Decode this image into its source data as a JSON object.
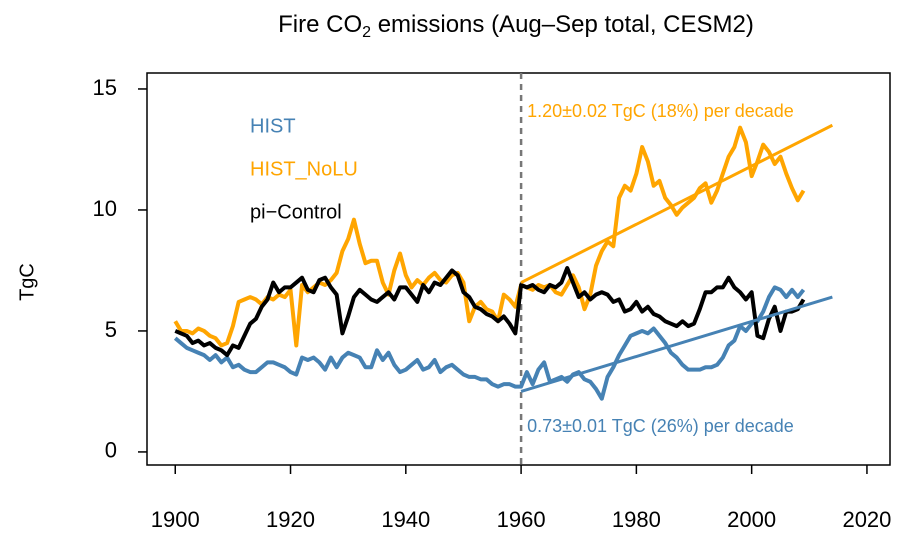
{
  "chart_data": {
    "type": "line",
    "title": {
      "text_before": "Fire CO",
      "subscript": "2",
      "text_after": " emissions (Aug–Sep total, CESM2)"
    },
    "y_label": "TgC",
    "x": [
      1900,
      1901,
      1902,
      1903,
      1904,
      1905,
      1906,
      1907,
      1908,
      1909,
      1910,
      1911,
      1912,
      1913,
      1914,
      1915,
      1916,
      1917,
      1918,
      1919,
      1920,
      1921,
      1922,
      1923,
      1924,
      1925,
      1926,
      1927,
      1928,
      1929,
      1930,
      1931,
      1932,
      1933,
      1934,
      1935,
      1936,
      1937,
      1938,
      1939,
      1940,
      1941,
      1942,
      1943,
      1944,
      1945,
      1946,
      1947,
      1948,
      1949,
      1950,
      1951,
      1952,
      1953,
      1954,
      1955,
      1956,
      1957,
      1958,
      1959,
      1960,
      1961,
      1962,
      1963,
      1964,
      1965,
      1966,
      1967,
      1968,
      1969,
      1970,
      1971,
      1972,
      1973,
      1974,
      1975,
      1976,
      1977,
      1978,
      1979,
      1980,
      1981,
      1982,
      1983,
      1984,
      1985,
      1986,
      1987,
      1988,
      1989,
      1990,
      1991,
      1992,
      1993,
      1994,
      1995,
      1996,
      1997,
      1998,
      1999,
      2000,
      2001,
      2002,
      2003,
      2004,
      2005,
      2006,
      2007,
      2008,
      2009
    ],
    "series": [
      {
        "name": "HIST",
        "color": "#4682b4",
        "values": [
          4.7,
          4.5,
          4.3,
          4.2,
          4.1,
          4.0,
          3.8,
          4.0,
          3.7,
          3.9,
          3.5,
          3.6,
          3.4,
          3.3,
          3.3,
          3.5,
          3.7,
          3.7,
          3.6,
          3.5,
          3.3,
          3.2,
          3.9,
          3.8,
          3.9,
          3.7,
          3.4,
          3.9,
          3.5,
          3.9,
          4.1,
          4.0,
          3.9,
          3.5,
          3.5,
          4.2,
          3.8,
          4.1,
          3.6,
          3.3,
          3.4,
          3.6,
          3.8,
          3.4,
          3.5,
          3.8,
          3.3,
          3.5,
          3.6,
          3.4,
          3.2,
          3.1,
          3.1,
          3.0,
          3.0,
          2.8,
          2.7,
          2.8,
          2.8,
          2.7,
          2.7,
          3.3,
          2.8,
          3.4,
          3.7,
          2.9,
          3.0,
          3.1,
          2.9,
          3.2,
          3.3,
          3.0,
          2.9,
          2.6,
          2.2,
          3.1,
          3.5,
          4.0,
          4.4,
          4.8,
          4.9,
          5.0,
          4.9,
          5.1,
          4.8,
          4.5,
          4.1,
          3.9,
          3.6,
          3.4,
          3.4,
          3.4,
          3.5,
          3.5,
          3.6,
          3.9,
          4.4,
          4.6,
          5.2,
          5.0,
          5.3,
          5.4,
          5.8,
          6.4,
          6.8,
          6.7,
          6.4,
          6.7,
          6.4,
          6.7
        ]
      },
      {
        "name": "HIST_NoLU",
        "color": "#ffa500",
        "values": [
          5.4,
          5.0,
          5.0,
          4.9,
          5.1,
          5.0,
          4.8,
          4.7,
          4.4,
          4.5,
          5.2,
          6.2,
          6.3,
          6.4,
          6.3,
          6.1,
          6.4,
          6.3,
          6.5,
          6.4,
          6.7,
          4.4,
          6.9,
          6.6,
          6.8,
          7.0,
          6.9,
          7.1,
          7.4,
          8.3,
          8.8,
          9.6,
          8.6,
          7.8,
          7.9,
          7.9,
          7.0,
          6.5,
          7.5,
          8.2,
          7.3,
          6.8,
          7.1,
          6.9,
          7.2,
          7.4,
          7.1,
          7.0,
          7.3,
          7.4,
          7.0,
          5.4,
          6.0,
          6.2,
          5.9,
          5.8,
          5.4,
          6.5,
          6.3,
          6.0,
          6.9,
          6.8,
          6.7,
          6.9,
          6.8,
          6.9,
          6.6,
          6.5,
          6.9,
          7.3,
          6.8,
          5.9,
          6.5,
          7.7,
          8.3,
          8.7,
          8.5,
          10.5,
          11.0,
          10.8,
          11.5,
          12.6,
          12.0,
          11.0,
          11.2,
          10.5,
          10.2,
          9.8,
          10.1,
          10.3,
          10.5,
          10.9,
          11.1,
          10.3,
          10.8,
          11.5,
          12.2,
          12.6,
          13.4,
          12.8,
          11.4,
          12.0,
          12.7,
          12.4,
          11.9,
          12.2,
          11.5,
          10.9,
          10.4,
          10.8
        ]
      },
      {
        "name": "pi−Control",
        "color": "#000000",
        "values": [
          5.0,
          4.9,
          4.8,
          4.5,
          4.6,
          4.4,
          4.5,
          4.3,
          4.2,
          4.0,
          4.4,
          4.3,
          4.8,
          5.3,
          5.5,
          6.0,
          6.3,
          7.0,
          6.6,
          6.8,
          6.8,
          7.0,
          7.2,
          6.7,
          6.6,
          7.1,
          7.2,
          6.8,
          6.5,
          4.9,
          5.6,
          6.4,
          6.7,
          6.5,
          6.3,
          6.2,
          6.4,
          6.6,
          6.3,
          6.8,
          6.8,
          6.5,
          6.2,
          6.9,
          6.6,
          7.0,
          6.9,
          7.2,
          7.5,
          7.3,
          6.6,
          6.4,
          6.0,
          5.9,
          5.7,
          5.6,
          5.4,
          5.6,
          5.3,
          4.9,
          6.9,
          6.8,
          6.9,
          6.7,
          6.6,
          6.9,
          6.8,
          7.0,
          7.6,
          7.0,
          6.4,
          6.6,
          6.3,
          6.5,
          6.6,
          6.5,
          6.2,
          6.3,
          5.8,
          5.9,
          6.2,
          5.8,
          6.0,
          5.7,
          5.6,
          5.4,
          5.3,
          5.2,
          5.4,
          5.2,
          5.3,
          5.9,
          6.6,
          6.6,
          6.8,
          6.8,
          7.2,
          6.8,
          6.6,
          6.3,
          6.6,
          4.8,
          4.7,
          5.5,
          6.0,
          5.0,
          5.8,
          5.8,
          5.9,
          6.3
        ]
      }
    ],
    "trends": [
      {
        "x": [
          1960,
          2014
        ],
        "values": [
          7.0,
          13.5
        ],
        "color": "#ffa500",
        "label": "1.20±0.02 TgC (18%) per decade"
      },
      {
        "x": [
          1960,
          2014
        ],
        "values": [
          2.5,
          6.4
        ],
        "color": "#4682b4",
        "label": "0.73±0.01 TgC (26%) per decade"
      }
    ],
    "vline": 1960,
    "xlim": [
      1895.1,
      2024
    ],
    "ylim": [
      -0.54,
      15.66
    ],
    "xticks": [
      1900,
      1920,
      1940,
      1960,
      1980,
      2000,
      2020
    ],
    "yticks": [
      0,
      5,
      10,
      15
    ],
    "legend": "top-left"
  }
}
